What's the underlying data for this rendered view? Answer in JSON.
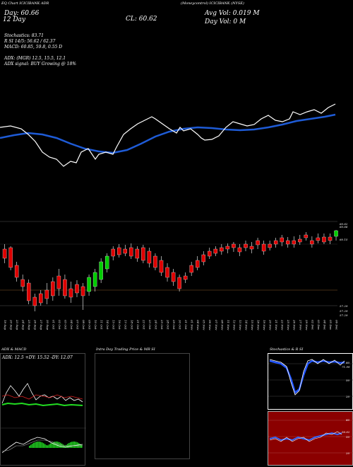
{
  "header": {
    "line1": "EQ Chart ICICIBANK ADR",
    "top_labels": [
      "ADX",
      "MACD",
      "Stochastics",
      "MR",
      "SI"
    ],
    "open_label": "Day: 60.66",
    "close_label": "CL: 60.62",
    "avg_vol_label": "Avg Vol: 0.019 M",
    "day_vol_label": "Day Vol: 0 M",
    "ticker_line": "(Moneycontrol) ICICIBANK (NYSE)",
    "daily_close": "12 Day",
    "stochastics_line": "Stochastics: 83.71",
    "rsi_line": "R SI 14/5: 56.62 / 62.37",
    "macd_line": "MACD: 60.85, 59.8, 0.55 D",
    "adx_line": "ADX:                          (MGR) 12.5, 15.5, 12.1",
    "adx_signal_line": "ADX signal:                    BUY Growing @ 18%"
  },
  "price_axis": {
    "top_labels": [
      "60.62",
      "60.66"
    ],
    "mid_label": "60.15",
    "low_labels": [
      "57.29",
      "57.29",
      "57.29"
    ]
  },
  "dates": [
    "19 Sep",
    "20 Sep",
    "23 Sep",
    "24 Sep",
    "25 Sep",
    "26 Sep",
    "27 Sep",
    "30 Sep",
    "01 Oct",
    "02 Oct",
    "03 Oct",
    "04 Oct",
    "07 Oct",
    "08 Oct",
    "09 Oct",
    "10 Oct",
    "11 Oct",
    "14 Oct",
    "15 Oct",
    "16 Oct",
    "17 Oct",
    "18 Oct",
    "21 Oct",
    "22 Oct",
    "23 Oct",
    "24 Oct",
    "25 Oct",
    "28 Oct",
    "29 Oct",
    "30 Oct",
    "31 Oct",
    "01 Nov",
    "04 Nov",
    "05 Nov",
    "06 Nov",
    "07 Nov",
    "08 Nov",
    "11 Nov",
    "12 Nov",
    "13 Nov",
    "14 Nov",
    "15 Nov",
    "18 Nov",
    "19 Nov",
    "20 Nov",
    "21 Nov",
    "22 Nov",
    "25 Nov",
    "26 Nov",
    "27 Nov",
    "29 Nov",
    "02 Dec",
    "03 Dec",
    "04 Dec",
    "05 Dec",
    "06 Dec"
  ],
  "panels": {
    "adx_title": "ADX & MACD",
    "adx_values": "ADX: 12.5  +DY: 15.52  -DY: 12.07",
    "intraday_title": "Intra Day Trading Price & MR                    SI",
    "stoch_title": "Stochastics & R                    SI",
    "stoch_labels": [
      "80",
      "50",
      "20"
    ],
    "rsi_labels": [
      "80",
      "50",
      "20"
    ],
    "stoch_val": "71.99",
    "rsi_val": "56.62"
  },
  "colors": {
    "background": "#000000",
    "ma_line": "#1e5bd6",
    "price_line": "#ffffff",
    "up_candle": "#00cc00",
    "down_candle": "#dd0000",
    "rsi_bg": "#8b0000",
    "stoch_line": "#2255ff"
  }
}
